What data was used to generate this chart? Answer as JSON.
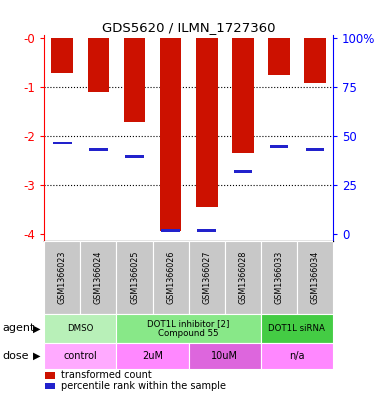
{
  "title": "GDS5620 / ILMN_1727360",
  "samples": [
    "GSM1366023",
    "GSM1366024",
    "GSM1366025",
    "GSM1366026",
    "GSM1366027",
    "GSM1366028",
    "GSM1366033",
    "GSM1366034"
  ],
  "red_values": [
    -0.72,
    -1.1,
    -1.72,
    -3.95,
    -3.45,
    -2.35,
    -0.75,
    -0.92
  ],
  "blue_values": [
    -2.15,
    -2.28,
    -2.42,
    -3.93,
    -3.93,
    -2.73,
    -2.22,
    -2.28
  ],
  "ylim": [
    -4.15,
    0.05
  ],
  "yticks": [
    0,
    -1,
    -2,
    -3,
    -4
  ],
  "ytick_labels": [
    "-0",
    "-1",
    "-2",
    "-3",
    "-4"
  ],
  "right_ytick_labels": [
    "100%",
    "75",
    "50",
    "25",
    "0"
  ],
  "bar_color": "#cc1100",
  "blue_color": "#2222cc",
  "agent_groups": [
    {
      "label": "DMSO",
      "cols": [
        0,
        1
      ],
      "color": "#b8f0b8"
    },
    {
      "label": "DOT1L inhibitor [2]\nCompound 55",
      "cols": [
        2,
        3,
        4,
        5
      ],
      "color": "#88e888"
    },
    {
      "label": "DOT1L siRNA",
      "cols": [
        6,
        7
      ],
      "color": "#44cc44"
    }
  ],
  "dose_groups": [
    {
      "label": "control",
      "cols": [
        0,
        1
      ],
      "color": "#ffaaff"
    },
    {
      "label": "2uM",
      "cols": [
        2,
        3
      ],
      "color": "#ff88ff"
    },
    {
      "label": "10uM",
      "cols": [
        4,
        5
      ],
      "color": "#dd66dd"
    },
    {
      "label": "n/a",
      "cols": [
        6,
        7
      ],
      "color": "#ff88ff"
    }
  ],
  "gray_color": "#c8c8c8",
  "bar_width": 0.6
}
